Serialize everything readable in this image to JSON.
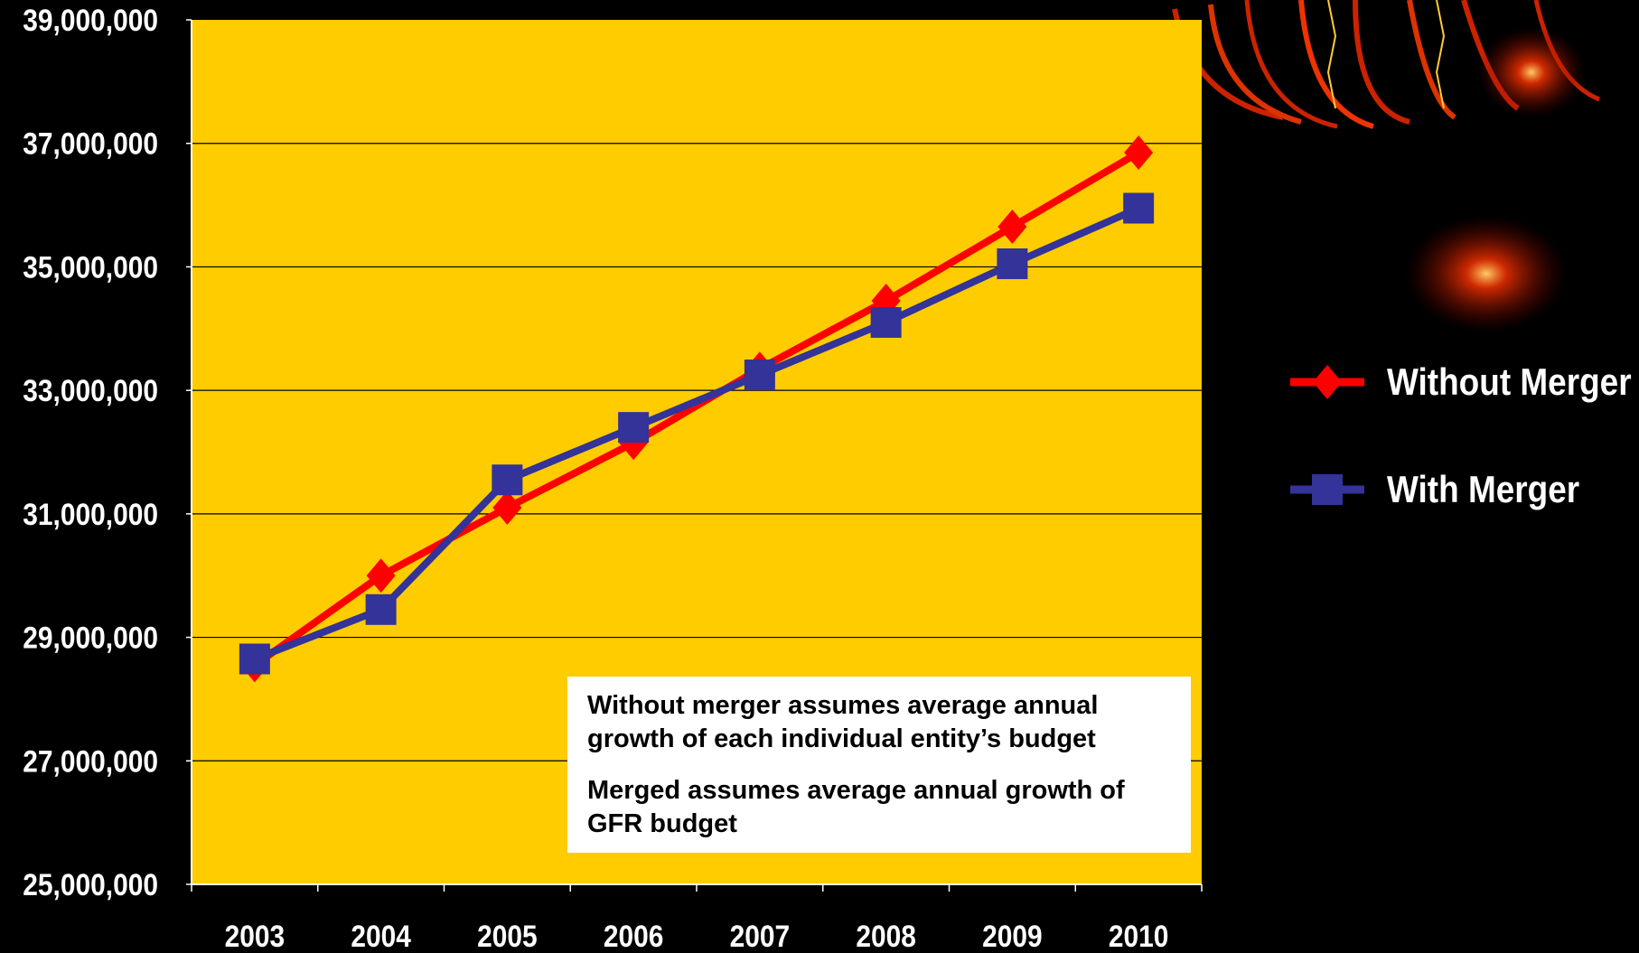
{
  "colors": {
    "background": "#000000",
    "plot_area": "#FFCC00",
    "without_merger": "#FF0000",
    "with_merger": "#333399",
    "text": "#FFFFFF"
  },
  "chart_data": {
    "type": "line",
    "title": "",
    "xlabel": "",
    "ylabel": "",
    "categories": [
      "2003",
      "2004",
      "2005",
      "2006",
      "2007",
      "2008",
      "2009",
      "2010"
    ],
    "y_ticks": [
      "25,000,000",
      "27,000,000",
      "29,000,000",
      "31,000,000",
      "33,000,000",
      "35,000,000",
      "37,000,000",
      "39,000,000"
    ],
    "ylim": [
      25000000,
      39000000
    ],
    "grid": true,
    "legend_position": "right",
    "series": [
      {
        "name": "Without Merger",
        "marker": "diamond",
        "color": "#FF0000",
        "values": [
          28550000,
          30000000,
          31100000,
          32150000,
          33350000,
          34450000,
          35650000,
          36850000
        ]
      },
      {
        "name": "With Merger",
        "marker": "square",
        "color": "#333399",
        "values": [
          28650000,
          29450000,
          31550000,
          32400000,
          33250000,
          34100000,
          35050000,
          35950000
        ]
      }
    ]
  },
  "notes": [
    "Without merger assumes average annual growth of each  individual entity’s budget",
    "Merged assumes  average annual growth of GFR budget"
  ]
}
